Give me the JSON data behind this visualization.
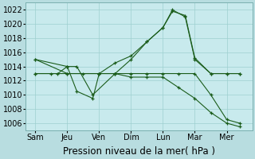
{
  "background_color": "#b8dde0",
  "plot_bg_color": "#c8eaed",
  "line_color": "#1a5c1a",
  "grid_color": "#9ecfcf",
  "xlabel": "Pression niveau de la mer( hPa )",
  "xlabel_fontsize": 8.5,
  "tick_fontsize": 7,
  "ylim": [
    1005,
    1023
  ],
  "yticks": [
    1006,
    1008,
    1010,
    1012,
    1014,
    1016,
    1018,
    1020,
    1022
  ],
  "days": [
    "Sam",
    "Jeu",
    "Ven",
    "Dim",
    "Lun",
    "Mar",
    "Mer"
  ],
  "day_positions": [
    0,
    1,
    2,
    3,
    4,
    5,
    6
  ],
  "xlim": [
    -0.3,
    6.8
  ],
  "lines": [
    {
      "x": [
        0,
        1,
        2,
        2.5,
        3,
        3.5,
        4,
        4.3,
        4.7,
        5,
        5.5,
        6,
        6.4
      ],
      "y": [
        1015,
        1013,
        1013,
        1014.5,
        1015.5,
        1017.5,
        1019.5,
        1021.8,
        1021.2,
        1015.2,
        1013,
        1013,
        1013
      ]
    },
    {
      "x": [
        0,
        0.7,
        1,
        1.3,
        1.8,
        2,
        2.5,
        3,
        3.5,
        4,
        4.5,
        5,
        5.5,
        6,
        6.4
      ],
      "y": [
        1013,
        1013,
        1014,
        1010.5,
        1009.5,
        1013,
        1013,
        1012.5,
        1012.5,
        1012.5,
        1011,
        1009.5,
        1007.5,
        1006,
        1005.5
      ]
    },
    {
      "x": [
        0,
        0.5,
        1,
        1.5,
        2,
        2.5,
        3,
        3.5,
        4,
        4.5,
        5,
        5.5,
        6,
        6.4
      ],
      "y": [
        1013,
        1013,
        1013,
        1013,
        1013,
        1013,
        1013,
        1013,
        1013,
        1013,
        1013,
        1010,
        1006.5,
        1006
      ]
    },
    {
      "x": [
        0,
        1,
        1.3,
        1.8,
        2.5,
        3,
        3.5,
        4,
        4.3,
        4.7,
        5,
        5.5,
        6,
        6.4
      ],
      "y": [
        1015,
        1014,
        1014,
        1010,
        1013,
        1015,
        1017.5,
        1019.5,
        1022,
        1021,
        1015,
        1013,
        1013,
        1013
      ]
    }
  ]
}
